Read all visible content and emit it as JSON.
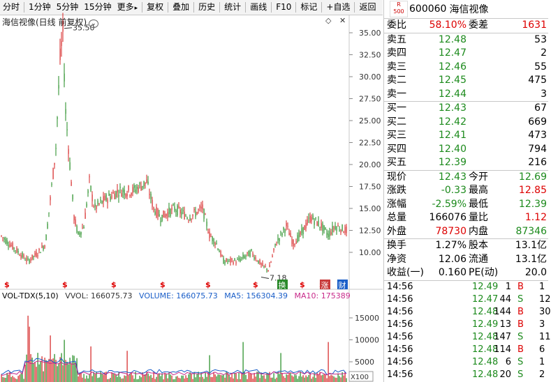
{
  "toolbar": {
    "items": [
      "分时",
      "1分钟",
      "5分钟",
      "15分钟",
      "更多",
      "复权",
      "叠加",
      "历史",
      "统计",
      "画线",
      "F10",
      "标记",
      "+自选",
      "返回"
    ],
    "more_arrow": "▸"
  },
  "chart": {
    "title": "海信视像(日线 前复权)",
    "y_ticks": [
      "35.00",
      "32.50",
      "30.00",
      "27.50",
      "25.00",
      "22.50",
      "20.00",
      "17.50",
      "15.00",
      "12.50",
      "10.00"
    ],
    "high_label": "35.50",
    "low_label": "7.18",
    "markers": [
      "$",
      "$",
      "$",
      "$",
      "$",
      "$",
      "$",
      "$",
      "$",
      "$"
    ],
    "tags": [
      "换",
      "涨",
      "财"
    ],
    "colors": {
      "up": "#d42020",
      "down": "#1c8a1c",
      "ma5": "#1a5ec8",
      "ma10": "#c82a8a"
    }
  },
  "volume": {
    "header": {
      "title": "VOL-TDX(5,10)",
      "vvol": "VVOL: 166075.73",
      "volume": "VOLUME: 166075.73",
      "ma5": "MA5: 156304.39",
      "ma10": "MA10: 175389"
    },
    "y_ticks": [
      "15000",
      "10000",
      "5000"
    ],
    "unit": "X100"
  },
  "quote": {
    "badge_top": "R",
    "badge_bottom": "500",
    "code": "600060",
    "name": "海信视像",
    "weibi_label": "委比",
    "weibi": "58.10%",
    "weicha_label": "委差",
    "weicha": "1631",
    "asks": [
      {
        "label": "卖五",
        "price": "12.48",
        "vol": "53"
      },
      {
        "label": "卖四",
        "price": "12.47",
        "vol": "2"
      },
      {
        "label": "卖三",
        "price": "12.46",
        "vol": "55"
      },
      {
        "label": "卖二",
        "price": "12.45",
        "vol": "475"
      },
      {
        "label": "卖一",
        "price": "12.44",
        "vol": "3"
      }
    ],
    "bids": [
      {
        "label": "买一",
        "price": "12.43",
        "vol": "67"
      },
      {
        "label": "买二",
        "price": "12.42",
        "vol": "669"
      },
      {
        "label": "买三",
        "price": "12.41",
        "vol": "473"
      },
      {
        "label": "买四",
        "price": "12.40",
        "vol": "794"
      },
      {
        "label": "买五",
        "price": "12.39",
        "vol": "216"
      }
    ],
    "stats": [
      {
        "l1": "现价",
        "v1": "12.43",
        "c1": "green",
        "l2": "今开",
        "v2": "12.69",
        "c2": "green"
      },
      {
        "l1": "涨跌",
        "v1": "-0.33",
        "c1": "green",
        "l2": "最高",
        "v2": "12.85",
        "c2": "red"
      },
      {
        "l1": "涨幅",
        "v1": "-2.59%",
        "c1": "green",
        "l2": "最低",
        "v2": "12.39",
        "c2": "green"
      },
      {
        "l1": "总量",
        "v1": "166076",
        "c1": "",
        "l2": "量比",
        "v2": "1.12",
        "c2": "red"
      },
      {
        "l1": "外盘",
        "v1": "78730",
        "c1": "red",
        "l2": "内盘",
        "v2": "87346",
        "c2": "green"
      }
    ],
    "fund": [
      {
        "l1": "换手",
        "v1": "1.27%",
        "l2": "股本",
        "v2": "13.1亿"
      },
      {
        "l1": "净资",
        "v1": "12.06",
        "l2": "流通",
        "v2": "13.1亿"
      },
      {
        "l1": "收益(一)",
        "v1": "0.160",
        "l2": "PE(动)",
        "v2": "20.0"
      }
    ],
    "ticks": [
      {
        "time": "14:56",
        "price": "12.49",
        "vol": "1",
        "bs": "B",
        "n": "1"
      },
      {
        "time": "14:56",
        "price": "12.47",
        "vol": "44",
        "bs": "S",
        "n": "12"
      },
      {
        "time": "14:56",
        "price": "12.48",
        "vol": "144",
        "bs": "B",
        "n": "30"
      },
      {
        "time": "14:56",
        "price": "12.49",
        "vol": "13",
        "bs": "B",
        "n": "3"
      },
      {
        "time": "14:56",
        "price": "12.48",
        "vol": "147",
        "bs": "S",
        "n": "11"
      },
      {
        "time": "14:56",
        "price": "12.48",
        "vol": "114",
        "bs": "B",
        "n": "6"
      },
      {
        "time": "14:56",
        "price": "12.48",
        "vol": "6",
        "bs": "S",
        "n": "1"
      },
      {
        "time": "14:56",
        "price": "12.48",
        "vol": "20",
        "bs": "S",
        "n": "2"
      }
    ]
  }
}
